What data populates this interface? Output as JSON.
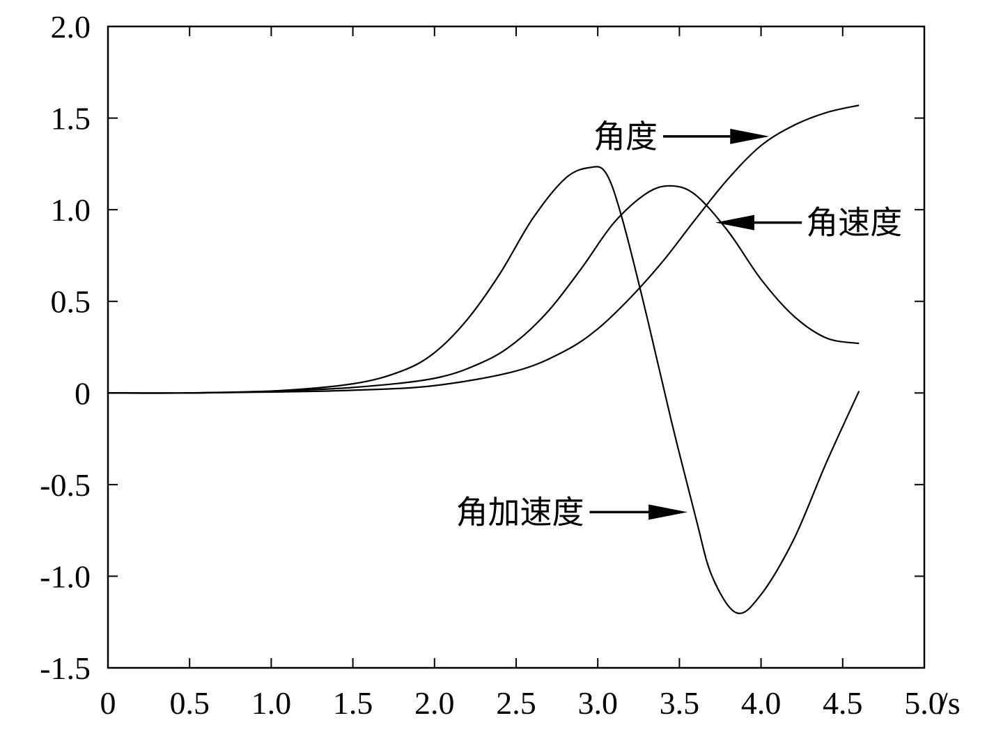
{
  "chart_data": {
    "type": "line",
    "title": "",
    "xlabel": "/s",
    "ylabel": "",
    "xlim": [
      0,
      5.0
    ],
    "ylim": [
      -1.5,
      2.0
    ],
    "grid": false,
    "x_ticks": [
      0,
      0.5,
      1.0,
      1.5,
      2.0,
      2.5,
      3.0,
      3.5,
      4.0,
      4.5,
      5.0
    ],
    "x_tick_labels": [
      "0",
      "0.5",
      "1.0",
      "1.5",
      "2.0",
      "2.5",
      "3.0",
      "3.5",
      "4.0",
      "4.5",
      "5.0"
    ],
    "y_ticks": [
      -1.5,
      -1.0,
      -0.5,
      0,
      0.5,
      1.0,
      1.5,
      2.0
    ],
    "y_tick_labels": [
      "-1.5",
      "-1.0",
      "-0.5",
      "0",
      "0.5",
      "1.0",
      "1.5",
      "2.0"
    ],
    "series": [
      {
        "name": "角度",
        "x": [
          0,
          0.5,
          1.0,
          1.5,
          2.0,
          2.5,
          2.8,
          3.0,
          3.2,
          3.4,
          3.6,
          3.8,
          4.0,
          4.2,
          4.4,
          4.6
        ],
        "y": [
          0,
          0.0,
          0.005,
          0.015,
          0.04,
          0.12,
          0.23,
          0.35,
          0.52,
          0.72,
          0.95,
          1.17,
          1.35,
          1.46,
          1.53,
          1.57
        ]
      },
      {
        "name": "角速度",
        "x": [
          0,
          0.5,
          1.0,
          1.5,
          2.0,
          2.3,
          2.5,
          2.7,
          2.9,
          3.1,
          3.3,
          3.45,
          3.6,
          3.8,
          4.0,
          4.2,
          4.4,
          4.6
        ],
        "y": [
          0,
          0.0,
          0.01,
          0.03,
          0.08,
          0.17,
          0.28,
          0.45,
          0.68,
          0.93,
          1.09,
          1.13,
          1.08,
          0.88,
          0.62,
          0.42,
          0.3,
          0.27
        ]
      },
      {
        "name": "角加速度",
        "x": [
          0,
          0.5,
          1.0,
          1.5,
          1.8,
          2.0,
          2.2,
          2.4,
          2.6,
          2.8,
          2.95,
          3.05,
          3.15,
          3.3,
          3.45,
          3.6,
          3.7,
          3.85,
          4.0,
          4.2,
          4.4,
          4.6
        ],
        "y": [
          0,
          0.0,
          0.01,
          0.05,
          0.12,
          0.22,
          0.4,
          0.65,
          0.95,
          1.17,
          1.23,
          1.2,
          0.95,
          0.42,
          -0.15,
          -0.68,
          -1.0,
          -1.2,
          -1.1,
          -0.8,
          -0.38,
          0.01
        ]
      }
    ],
    "annotations": [
      {
        "text": "角度",
        "target_series": "角度",
        "arrow_from": [
          3.4,
          1.4
        ],
        "arrow_to": [
          4.05,
          1.4
        ]
      },
      {
        "text": "角速度",
        "target_series": "角速度",
        "arrow_from": [
          4.25,
          0.93
        ],
        "arrow_to": [
          3.72,
          0.93
        ]
      },
      {
        "text": "角加速度",
        "target_series": "角加速度",
        "arrow_from": [
          2.95,
          -0.65
        ],
        "arrow_to": [
          3.55,
          -0.65
        ]
      }
    ]
  }
}
